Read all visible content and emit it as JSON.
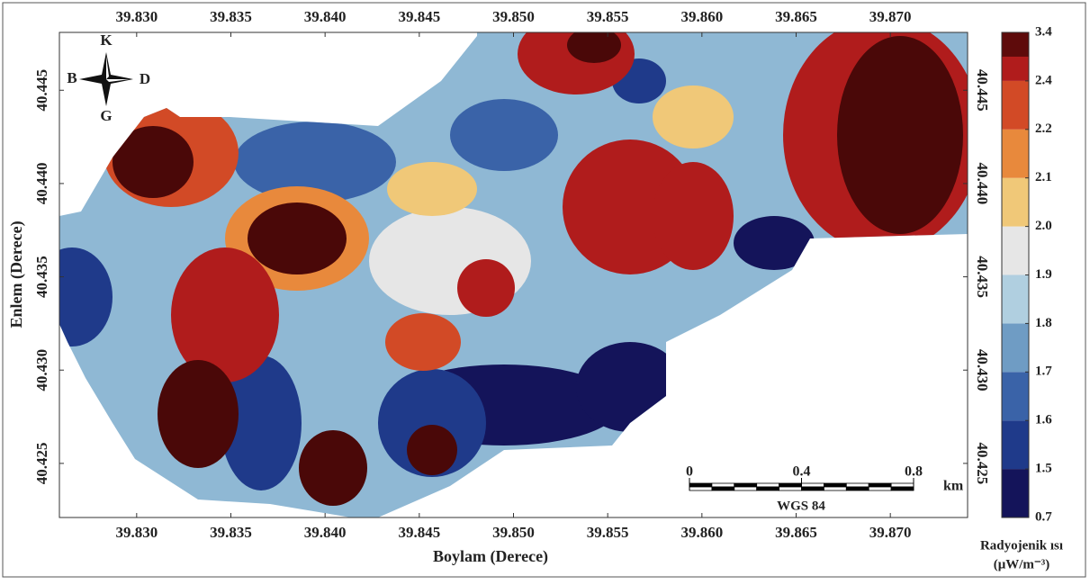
{
  "map": {
    "x_axis": {
      "label": "Boylam (Derece)",
      "xlim": [
        39.8259,
        39.8741
      ],
      "ticks": [
        {
          "value": 39.83,
          "label": "39.830"
        },
        {
          "value": 39.835,
          "label": "39.835"
        },
        {
          "value": 39.84,
          "label": "39.840"
        },
        {
          "value": 39.845,
          "label": "39.845"
        },
        {
          "value": 39.85,
          "label": "39.850"
        },
        {
          "value": 39.855,
          "label": "39.855"
        },
        {
          "value": 39.86,
          "label": "39.860"
        },
        {
          "value": 39.865,
          "label": "39.865"
        },
        {
          "value": 39.87,
          "label": "39.870"
        }
      ]
    },
    "y_axis": {
      "label": "Enlem (Derece)",
      "ylim": [
        40.4221,
        40.4481
      ],
      "ticks": [
        {
          "value": 40.425,
          "label": "40.425"
        },
        {
          "value": 40.43,
          "label": "40.430"
        },
        {
          "value": 40.435,
          "label": "40.435"
        },
        {
          "value": 40.44,
          "label": "40.440"
        },
        {
          "value": 40.445,
          "label": "40.445"
        }
      ]
    },
    "compass": {
      "north": "K",
      "west": "B",
      "east": "D",
      "south": "G"
    },
    "scale_bar": {
      "ticks": [
        0,
        0.4,
        0.8
      ],
      "unit": "km",
      "datum": "WGS 84"
    },
    "colorbar": {
      "title": "Radyojenik ısı",
      "unit": "(μW/m⁻³)",
      "levels": [
        0.7,
        1.5,
        1.6,
        1.7,
        1.8,
        1.9,
        {
          "value": 2,
          "label": "2.0"
        },
        2.1,
        2.2,
        2.4,
        3.4
      ],
      "colors": [
        "#14145a",
        "#1f3a8a",
        "#3a63a8",
        "#6f9cc4",
        "#b0cfe0",
        "#e6e6e6",
        "#f0c878",
        "#e8893c",
        "#d24a26",
        "#b01c1c"
      ],
      "top_color": "#4a0808"
    }
  }
}
